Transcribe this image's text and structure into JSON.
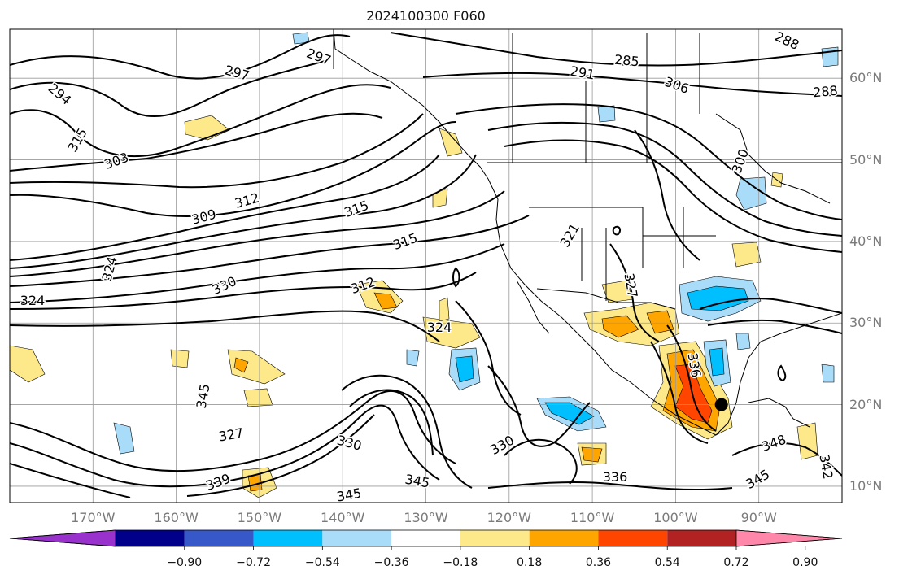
{
  "title": "2024100300 F060",
  "lat_ticks": [
    "60°N",
    "50°N",
    "40°N",
    "30°N",
    "20°N",
    "10°N"
  ],
  "lat_values": [
    60,
    50,
    40,
    30,
    20,
    10
  ],
  "lon_ticks": [
    "170°W",
    "160°W",
    "150°W",
    "140°W",
    "130°W",
    "120°W",
    "110°W",
    "100°W",
    "90°W"
  ],
  "lon_values": [
    -170,
    -160,
    -150,
    -140,
    -130,
    -120,
    -110,
    -100,
    -90
  ],
  "map_extent": {
    "lon_min": -180,
    "lon_max": -80,
    "lat_min": 8,
    "lat_max": 66
  },
  "colorbar": {
    "labels": [
      "−0.90",
      "−0.72",
      "−0.54",
      "−0.36",
      "−0.18",
      "0.18",
      "0.36",
      "0.54",
      "0.72",
      "0.90"
    ],
    "values": [
      -0.9,
      -0.72,
      -0.54,
      -0.36,
      -0.18,
      0.18,
      0.36,
      0.54,
      0.72,
      0.9
    ],
    "colors": [
      "#9932cc",
      "#00008b",
      "#3658c8",
      "#00bfff",
      "#a9dcf8",
      "#ffffff",
      "#fde98a",
      "#ffa500",
      "#ff4500",
      "#b22222",
      "#ff88aa"
    ]
  },
  "contour_labels": [
    "297",
    "285",
    "288",
    "294",
    "291",
    "297",
    "288",
    "306",
    "315",
    "300",
    "303",
    "315",
    "312",
    "321",
    "309",
    "324",
    "330",
    "327",
    "312",
    "315",
    "324",
    "330",
    "327",
    "336",
    "339",
    "345",
    "330",
    "345",
    "336",
    "345",
    "348",
    "342",
    "345",
    "324"
  ],
  "marker": {
    "lon": -94.5,
    "lat": 20,
    "color": "#000000"
  }
}
